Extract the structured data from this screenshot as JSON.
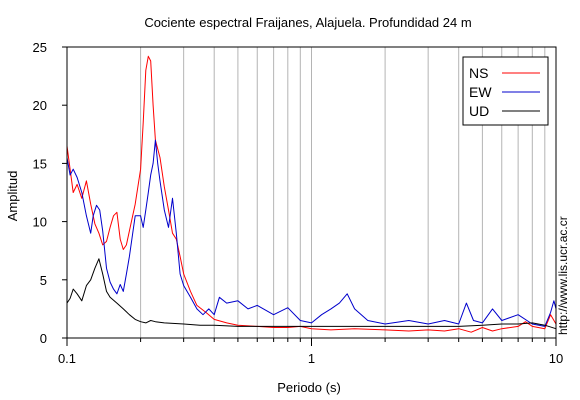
{
  "chart_data": {
    "type": "line",
    "title": "Cociente espectral Fraijanes, Alajuela. Profundidad 24 m",
    "xlabel": "Periodo (s)",
    "ylabel": "Amplitud",
    "xscale": "log",
    "xlim": [
      0.1,
      10
    ],
    "ylim": [
      0,
      25
    ],
    "x_ticks": [
      {
        "value": 0.1,
        "label": "0.1"
      },
      {
        "value": 1,
        "label": "1"
      },
      {
        "value": 10,
        "label": "10"
      }
    ],
    "y_ticks": [
      {
        "value": 0,
        "label": "0"
      },
      {
        "value": 5,
        "label": "5"
      },
      {
        "value": 10,
        "label": "10"
      },
      {
        "value": 15,
        "label": "15"
      },
      {
        "value": 20,
        "label": "20"
      },
      {
        "value": 25,
        "label": "25"
      }
    ],
    "grid": "vertical lines at log decades",
    "legend_position": "top-right",
    "credit_text": "http://www.lis.ucr.ac.cr",
    "series": [
      {
        "name": "NS",
        "color": "#ff0000",
        "points": [
          [
            0.1,
            16.5
          ],
          [
            0.103,
            14.5
          ],
          [
            0.106,
            12.5
          ],
          [
            0.11,
            13.2
          ],
          [
            0.115,
            12.0
          ],
          [
            0.12,
            13.5
          ],
          [
            0.125,
            11.5
          ],
          [
            0.13,
            9.8
          ],
          [
            0.135,
            9.0
          ],
          [
            0.14,
            8.0
          ],
          [
            0.145,
            8.3
          ],
          [
            0.15,
            9.5
          ],
          [
            0.155,
            10.5
          ],
          [
            0.16,
            10.8
          ],
          [
            0.165,
            8.5
          ],
          [
            0.17,
            7.6
          ],
          [
            0.175,
            8.0
          ],
          [
            0.18,
            9.2
          ],
          [
            0.19,
            11.5
          ],
          [
            0.2,
            14.5
          ],
          [
            0.205,
            18.5
          ],
          [
            0.21,
            23.0
          ],
          [
            0.215,
            24.2
          ],
          [
            0.22,
            23.8
          ],
          [
            0.225,
            20.0
          ],
          [
            0.23,
            17.0
          ],
          [
            0.24,
            15.5
          ],
          [
            0.25,
            13.0
          ],
          [
            0.26,
            11.0
          ],
          [
            0.27,
            9.0
          ],
          [
            0.28,
            8.5
          ],
          [
            0.29,
            7.0
          ],
          [
            0.3,
            5.5
          ],
          [
            0.32,
            4.0
          ],
          [
            0.34,
            2.8
          ],
          [
            0.37,
            2.2
          ],
          [
            0.4,
            1.6
          ],
          [
            0.45,
            1.3
          ],
          [
            0.5,
            1.1
          ],
          [
            0.6,
            1.0
          ],
          [
            0.7,
            0.9
          ],
          [
            0.8,
            0.9
          ],
          [
            0.9,
            1.0
          ],
          [
            1.0,
            0.8
          ],
          [
            1.2,
            0.7
          ],
          [
            1.5,
            0.8
          ],
          [
            2.0,
            0.7
          ],
          [
            2.5,
            0.6
          ],
          [
            3.0,
            0.7
          ],
          [
            3.5,
            0.6
          ],
          [
            4.0,
            0.8
          ],
          [
            4.5,
            0.5
          ],
          [
            5.0,
            0.9
          ],
          [
            5.5,
            0.6
          ],
          [
            6.0,
            0.8
          ],
          [
            7.0,
            1.0
          ],
          [
            7.5,
            1.4
          ],
          [
            8.0,
            1.0
          ],
          [
            9.0,
            0.8
          ],
          [
            9.5,
            2.0
          ],
          [
            10.0,
            1.2
          ]
        ]
      },
      {
        "name": "EW",
        "color": "#0000cc",
        "points": [
          [
            0.1,
            15.5
          ],
          [
            0.103,
            14.0
          ],
          [
            0.106,
            14.5
          ],
          [
            0.11,
            13.8
          ],
          [
            0.115,
            12.5
          ],
          [
            0.12,
            10.5
          ],
          [
            0.125,
            9.0
          ],
          [
            0.128,
            10.5
          ],
          [
            0.132,
            11.4
          ],
          [
            0.136,
            11.0
          ],
          [
            0.14,
            9.2
          ],
          [
            0.145,
            6.0
          ],
          [
            0.15,
            4.8
          ],
          [
            0.155,
            4.2
          ],
          [
            0.16,
            3.8
          ],
          [
            0.165,
            4.6
          ],
          [
            0.17,
            4.0
          ],
          [
            0.175,
            5.5
          ],
          [
            0.18,
            7.0
          ],
          [
            0.19,
            10.5
          ],
          [
            0.2,
            10.5
          ],
          [
            0.205,
            9.5
          ],
          [
            0.21,
            11.0
          ],
          [
            0.215,
            12.5
          ],
          [
            0.22,
            14.0
          ],
          [
            0.225,
            15.0
          ],
          [
            0.23,
            17.0
          ],
          [
            0.235,
            15.0
          ],
          [
            0.24,
            13.5
          ],
          [
            0.25,
            11.0
          ],
          [
            0.26,
            9.5
          ],
          [
            0.27,
            12.0
          ],
          [
            0.28,
            9.0
          ],
          [
            0.29,
            5.5
          ],
          [
            0.3,
            4.5
          ],
          [
            0.32,
            3.5
          ],
          [
            0.34,
            2.5
          ],
          [
            0.36,
            2.0
          ],
          [
            0.38,
            2.5
          ],
          [
            0.4,
            2.0
          ],
          [
            0.42,
            3.5
          ],
          [
            0.45,
            3.0
          ],
          [
            0.5,
            3.2
          ],
          [
            0.55,
            2.5
          ],
          [
            0.6,
            2.8
          ],
          [
            0.7,
            2.0
          ],
          [
            0.8,
            2.6
          ],
          [
            0.9,
            1.5
          ],
          [
            1.0,
            1.3
          ],
          [
            1.1,
            2.0
          ],
          [
            1.2,
            2.5
          ],
          [
            1.3,
            3.0
          ],
          [
            1.4,
            3.8
          ],
          [
            1.5,
            2.5
          ],
          [
            1.7,
            1.5
          ],
          [
            2.0,
            1.2
          ],
          [
            2.5,
            1.5
          ],
          [
            3.0,
            1.2
          ],
          [
            3.5,
            1.5
          ],
          [
            4.0,
            1.2
          ],
          [
            4.3,
            3.0
          ],
          [
            4.6,
            1.5
          ],
          [
            5.0,
            1.3
          ],
          [
            5.5,
            2.5
          ],
          [
            6.0,
            1.5
          ],
          [
            7.0,
            2.0
          ],
          [
            8.0,
            1.2
          ],
          [
            9.0,
            1.0
          ],
          [
            9.5,
            2.2
          ],
          [
            9.8,
            3.2
          ],
          [
            10.0,
            2.5
          ]
        ]
      },
      {
        "name": "UD",
        "color": "#000000",
        "points": [
          [
            0.1,
            3.0
          ],
          [
            0.103,
            3.4
          ],
          [
            0.106,
            4.2
          ],
          [
            0.11,
            3.8
          ],
          [
            0.115,
            3.2
          ],
          [
            0.12,
            4.5
          ],
          [
            0.125,
            5.0
          ],
          [
            0.13,
            6.0
          ],
          [
            0.135,
            6.8
          ],
          [
            0.14,
            5.5
          ],
          [
            0.145,
            4.0
          ],
          [
            0.15,
            3.5
          ],
          [
            0.16,
            3.0
          ],
          [
            0.17,
            2.5
          ],
          [
            0.18,
            2.0
          ],
          [
            0.19,
            1.6
          ],
          [
            0.2,
            1.4
          ],
          [
            0.21,
            1.3
          ],
          [
            0.22,
            1.5
          ],
          [
            0.23,
            1.4
          ],
          [
            0.25,
            1.3
          ],
          [
            0.3,
            1.2
          ],
          [
            0.35,
            1.1
          ],
          [
            0.4,
            1.1
          ],
          [
            0.5,
            1.0
          ],
          [
            0.7,
            1.0
          ],
          [
            1.0,
            1.0
          ],
          [
            1.5,
            1.0
          ],
          [
            2.0,
            1.0
          ],
          [
            3.0,
            1.0
          ],
          [
            4.0,
            1.0
          ],
          [
            5.0,
            1.1
          ],
          [
            6.0,
            1.2
          ],
          [
            7.0,
            1.2
          ],
          [
            8.0,
            1.3
          ],
          [
            9.0,
            1.1
          ],
          [
            10.0,
            0.8
          ]
        ]
      }
    ]
  }
}
